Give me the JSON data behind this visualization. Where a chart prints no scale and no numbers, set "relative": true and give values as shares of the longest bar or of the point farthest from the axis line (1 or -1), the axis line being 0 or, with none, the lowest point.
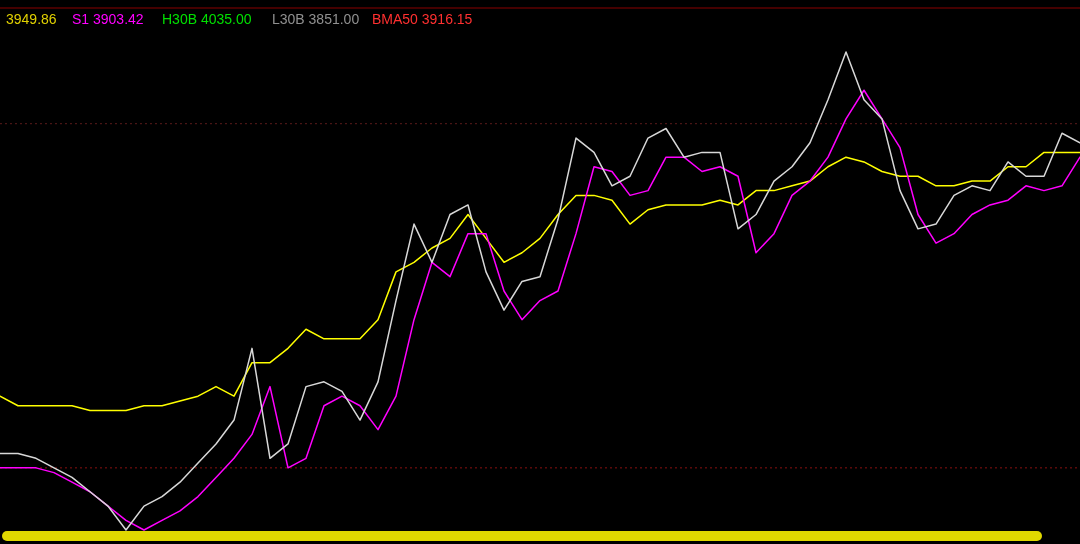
{
  "chart_data": {
    "type": "line",
    "relative": true,
    "annotations": [
      "3949.86",
      "S1 3903.42",
      "H30B 4035.00",
      "L30B 3851.00",
      "BMA50 3916.15"
    ],
    "categories": [
      null,
      null,
      null,
      null,
      null,
      null,
      null,
      null,
      null,
      null,
      null,
      null,
      null,
      null,
      null,
      null,
      null,
      null,
      null,
      null,
      null,
      null,
      null,
      null,
      null,
      null,
      null,
      null,
      null,
      null,
      null,
      null,
      null,
      null,
      null,
      null,
      null,
      null,
      null,
      null,
      null,
      null,
      null,
      null,
      null,
      null,
      null,
      null,
      null,
      null,
      null,
      null,
      null,
      null,
      null,
      null,
      null,
      null,
      null,
      null,
      null
    ],
    "series": [
      {
        "color": "#ffff00",
        "values": [
          0.28,
          0.26,
          0.26,
          0.26,
          0.26,
          0.25,
          0.25,
          0.25,
          0.26,
          0.26,
          0.27,
          0.28,
          0.3,
          0.28,
          0.35,
          0.35,
          0.38,
          0.42,
          0.4,
          0.4,
          0.4,
          0.44,
          0.54,
          0.56,
          0.59,
          0.61,
          0.66,
          0.61,
          0.56,
          0.58,
          0.61,
          0.66,
          0.7,
          0.7,
          0.69,
          0.64,
          0.67,
          0.68,
          0.68,
          0.68,
          0.69,
          0.68,
          0.71,
          0.71,
          0.72,
          0.73,
          0.76,
          0.78,
          0.77,
          0.75,
          0.74,
          0.74,
          0.72,
          0.72,
          0.73,
          0.73,
          0.76,
          0.76,
          0.79,
          0.79,
          0.79
        ]
      },
      {
        "color": "#ff00ff",
        "values": [
          0.13,
          0.13,
          0.13,
          0.12,
          0.1,
          0.08,
          0.05,
          0.02,
          0.0,
          0.02,
          0.04,
          0.07,
          0.11,
          0.15,
          0.2,
          0.3,
          0.13,
          0.15,
          0.26,
          0.28,
          0.26,
          0.21,
          0.28,
          0.44,
          0.56,
          0.53,
          0.62,
          0.62,
          0.5,
          0.44,
          0.48,
          0.5,
          0.62,
          0.76,
          0.75,
          0.7,
          0.71,
          0.78,
          0.78,
          0.75,
          0.76,
          0.74,
          0.58,
          0.62,
          0.7,
          0.73,
          0.78,
          0.86,
          0.92,
          0.86,
          0.8,
          0.66,
          0.6,
          0.62,
          0.66,
          0.68,
          0.69,
          0.72,
          0.71,
          0.72,
          0.78
        ]
      },
      {
        "color": "#d8d8d8",
        "values": [
          0.16,
          0.16,
          0.15,
          0.13,
          0.11,
          0.08,
          0.05,
          0,
          0.05,
          0.07,
          0.1,
          0.14,
          0.18,
          0.23,
          0.38,
          0.15,
          0.18,
          0.3,
          0.31,
          0.29,
          0.23,
          0.31,
          0.48,
          0.64,
          0.56,
          0.66,
          0.68,
          0.54,
          0.46,
          0.52,
          0.53,
          0.65,
          0.82,
          0.79,
          0.72,
          0.74,
          0.82,
          0.84,
          0.78,
          0.79,
          0.79,
          0.63,
          0.66,
          0.73,
          0.76,
          0.81,
          0.9,
          1,
          0.9,
          0.86,
          0.71,
          0.63,
          0.64,
          0.7,
          0.72,
          0.71,
          0.77,
          0.74,
          0.74,
          0.83,
          0.81
        ]
      }
    ],
    "ref_lines": [
      {
        "axis": "y",
        "value": 0.85,
        "color": "#5a1a1a",
        "line_style": "dotted"
      },
      {
        "axis": "y",
        "value": 0.13,
        "color": "#8a1010",
        "line_style": "dotted"
      }
    ]
  }
}
